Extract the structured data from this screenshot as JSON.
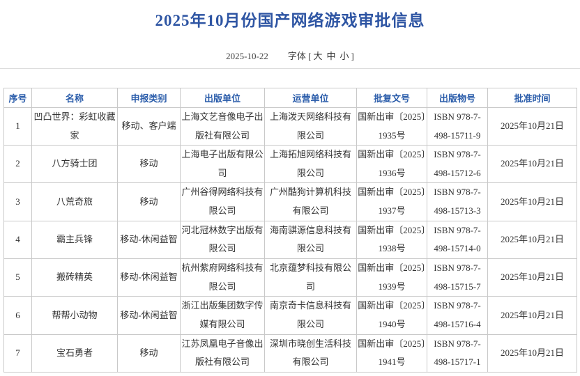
{
  "header": {
    "title": "2025年10月份国产网络游戏审批信息",
    "date": "2025-10-22",
    "font_label": "字体",
    "bracket_open": "[",
    "bracket_close": "]",
    "font_sizes": [
      "大",
      "中",
      "小"
    ]
  },
  "colors": {
    "title_blue": "#2e55a3",
    "header_blue": "#2a5caa",
    "body_text": "#333333",
    "table_border": "#c9c9c9"
  },
  "table": {
    "headers": [
      "序号",
      "名称",
      "申报类别",
      "出版单位",
      "运营单位",
      "批复文号",
      "出版物号",
      "批准时间"
    ],
    "rows": [
      {
        "seq": "1",
        "name": "凹凸世界：彩虹收藏家",
        "category": "移动、客户端",
        "publisher": "上海文艺音像电子出版社有限公司",
        "operator": "上海泼天网络科技有限公司",
        "approval_no": "国新出审〔2025〕1935号",
        "isbn": "ISBN 978-7-498-15711-9",
        "approved_date": "2025年10月21日"
      },
      {
        "seq": "2",
        "name": "八方骑士团",
        "category": "移动",
        "publisher": "上海电子出版有限公司",
        "operator": "上海拓旭网络科技有限公司",
        "approval_no": "国新出审〔2025〕1936号",
        "isbn": "ISBN 978-7-498-15712-6",
        "approved_date": "2025年10月21日"
      },
      {
        "seq": "3",
        "name": "八荒奇旅",
        "category": "移动",
        "publisher": "广州谷得网络科技有限公司",
        "operator": "广州酷狗计算机科技有限公司",
        "approval_no": "国新出审〔2025〕1937号",
        "isbn": "ISBN 978-7-498-15713-3",
        "approved_date": "2025年10月21日"
      },
      {
        "seq": "4",
        "name": "霸主兵锋",
        "category": "移动-休闲益智",
        "publisher": "河北冠林数字出版有限公司",
        "operator": "海南骐源信息科技有限公司",
        "approval_no": "国新出审〔2025〕1938号",
        "isbn": "ISBN 978-7-498-15714-0",
        "approved_date": "2025年10月21日"
      },
      {
        "seq": "5",
        "name": "搬砖精英",
        "category": "移动-休闲益智",
        "publisher": "杭州紫府网络科技有限公司",
        "operator": "北京蕴梦科技有限公司",
        "approval_no": "国新出审〔2025〕1939号",
        "isbn": "ISBN 978-7-498-15715-7",
        "approved_date": "2025年10月21日"
      },
      {
        "seq": "6",
        "name": "帮帮小动物",
        "category": "移动-休闲益智",
        "publisher": "浙江出版集团数字传媒有限公司",
        "operator": "南京奇卡信息科技有限公司",
        "approval_no": "国新出审〔2025〕1940号",
        "isbn": "ISBN 978-7-498-15716-4",
        "approved_date": "2025年10月21日"
      },
      {
        "seq": "7",
        "name": "宝石勇者",
        "category": "移动",
        "publisher": "江苏凤凰电子音像出版社有限公司",
        "operator": "深圳市晓创生活科技有限公司",
        "approval_no": "国新出审〔2025〕1941号",
        "isbn": "ISBN 978-7-498-15717-1",
        "approved_date": "2025年10月21日"
      }
    ]
  }
}
